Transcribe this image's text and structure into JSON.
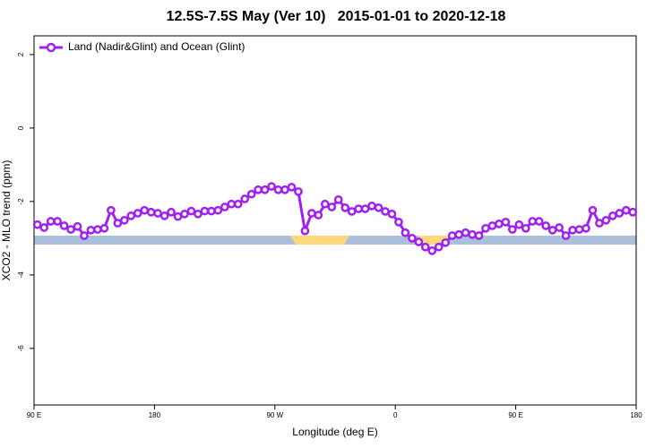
{
  "chart_data": {
    "type": "line",
    "title": "12.5S-7.5S May (Ver 10)   2015-01-01 to 2020-12-18",
    "x_label": "Longitude (deg E)",
    "y_label": "XCO2 - MLO trend (ppm)",
    "xlim": [
      90,
      540
    ],
    "xticks": [
      {
        "value": 90,
        "label": "90 E"
      },
      180,
      {
        "value": 270,
        "label": "90 W"
      },
      {
        "value": 360,
        "label": "0"
      },
      {
        "value": 450,
        "label": "90 E"
      },
      {
        "value": 540,
        "label": "180"
      }
    ],
    "ylim": [
      2.51,
      -7.54
    ],
    "yticks": [
      2,
      0,
      -2,
      -4,
      -6
    ],
    "legend": "top-left",
    "x": [
      92.5,
      97.5,
      102.5,
      107.5,
      112.5,
      117.5,
      122.5,
      127.5,
      132.5,
      137.5,
      142.5,
      147.5,
      152.5,
      157.5,
      162.5,
      167.5,
      172.5,
      177.5,
      182.5,
      187.5,
      192.5,
      197.5,
      202.5,
      207.5,
      212.5,
      217.5,
      222.5,
      227.5,
      232.5,
      237.5,
      242.5,
      247.5,
      252.5,
      257.5,
      262.5,
      267.5,
      272.5,
      277.5,
      282.5,
      287.5,
      292.5,
      297.5,
      302.5,
      307.5,
      312.5,
      317.5,
      322.5,
      327.5,
      332.5,
      337.5,
      342.5,
      347.5,
      352.5,
      357.5,
      362.5,
      367.5,
      372.5,
      377.5,
      382.5,
      387.5,
      392.5,
      397.5,
      402.5,
      407.5,
      412.5,
      417.5,
      422.5,
      427.5,
      432.5,
      437.5,
      442.5,
      447.5,
      452.5,
      457.5,
      462.5,
      467.5,
      472.5,
      477.5,
      482.5,
      487.5,
      492.5,
      497.5,
      502.5,
      507.5,
      512.5,
      517.5,
      522.5,
      527.5,
      532.5,
      537.5
    ],
    "series": [
      {
        "name": "Land (Nadir&Glint) and Ocean (Glint)",
        "color": "#a020f0",
        "values": [
          -2.63,
          -2.71,
          -2.54,
          -2.54,
          -2.66,
          -2.76,
          -2.68,
          -2.93,
          -2.78,
          -2.76,
          -2.73,
          -2.24,
          -2.59,
          -2.51,
          -2.39,
          -2.32,
          -2.24,
          -2.29,
          -2.32,
          -2.39,
          -2.29,
          -2.41,
          -2.34,
          -2.26,
          -2.34,
          -2.26,
          -2.26,
          -2.24,
          -2.15,
          -2.07,
          -2.07,
          -1.93,
          -1.8,
          -1.68,
          -1.68,
          -1.59,
          -1.68,
          -1.68,
          -1.61,
          -1.73,
          -2.8,
          -2.32,
          -2.37,
          -2.07,
          -2.15,
          -1.95,
          -2.17,
          -2.27,
          -2.2,
          -2.2,
          -2.12,
          -2.17,
          -2.27,
          -2.34,
          -2.56,
          -2.85,
          -3.0,
          -3.1,
          -3.24,
          -3.34,
          -3.24,
          -3.12,
          -2.93,
          -2.9,
          -2.85,
          -2.9,
          -2.93,
          -2.73,
          -2.66,
          -2.61,
          -2.56,
          -2.76,
          -2.63,
          -2.73,
          -2.54,
          -2.54,
          -2.66,
          -2.78,
          -2.71,
          -2.93,
          -2.78,
          -2.76,
          -2.73,
          -2.24,
          -2.59,
          -2.51,
          -2.39,
          -2.32,
          -2.24,
          -2.29
        ]
      }
    ]
  }
}
